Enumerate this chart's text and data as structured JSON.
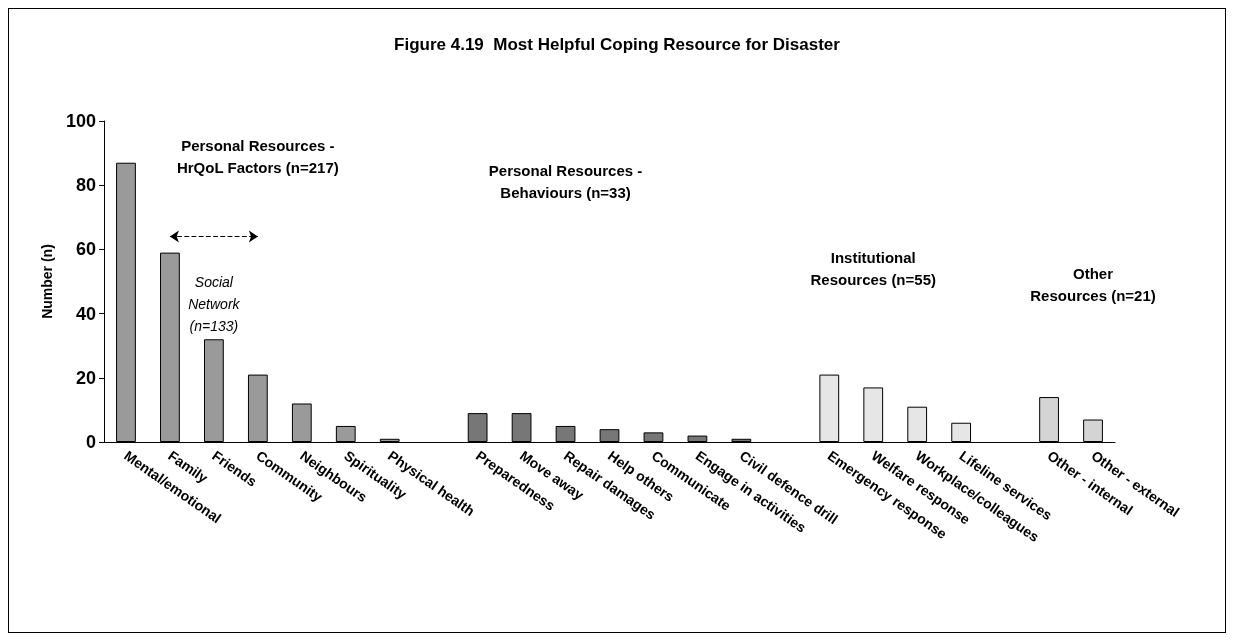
{
  "chart_data": {
    "type": "bar",
    "title": "Figure 4.19  Most Helpful Coping Resource for Disaster",
    "ylabel": "Number (n)",
    "categories": [
      "Mental/emotional",
      "Family",
      "Friends",
      "Community",
      "Neighbours",
      "Spirituality",
      "Physical health",
      null,
      "Preparedness",
      "Move away",
      "Repair damages",
      "Help others",
      "Communicate",
      "Engage in activities",
      "Civil defence drill",
      null,
      "Emergency response",
      "Welfare response",
      "Workplace/colleagues",
      "Lifeline services",
      null,
      "Other - internal",
      "Other - external"
    ],
    "values": [
      87,
      59,
      32,
      21,
      12,
      5,
      1,
      null,
      9,
      9,
      5,
      4,
      3,
      2,
      1,
      null,
      21,
      17,
      11,
      6,
      null,
      14,
      7
    ],
    "colors": [
      "#9a9a9a",
      "#9a9a9a",
      "#9a9a9a",
      "#9a9a9a",
      "#9a9a9a",
      "#9a9a9a",
      "#9a9a9a",
      null,
      "#777777",
      "#777777",
      "#777777",
      "#777777",
      "#777777",
      "#777777",
      "#777777",
      null,
      "#e6e6e6",
      "#e6e6e6",
      "#e6e6e6",
      "#e6e6e6",
      null,
      "#d4d4d4",
      "#d4d4d4"
    ],
    "ylim": [
      0,
      100
    ],
    "yticks": [
      0,
      20,
      40,
      60,
      80,
      100
    ],
    "annotations": [
      "Personal Resources -\nHrQoL Factors (n=217)",
      "Personal Resources -\nBehaviours (n=33)",
      "Institutional\nResources (n=55)",
      "Other\nResources (n=21)",
      "Social\nNetwork\n(n=133)"
    ]
  }
}
